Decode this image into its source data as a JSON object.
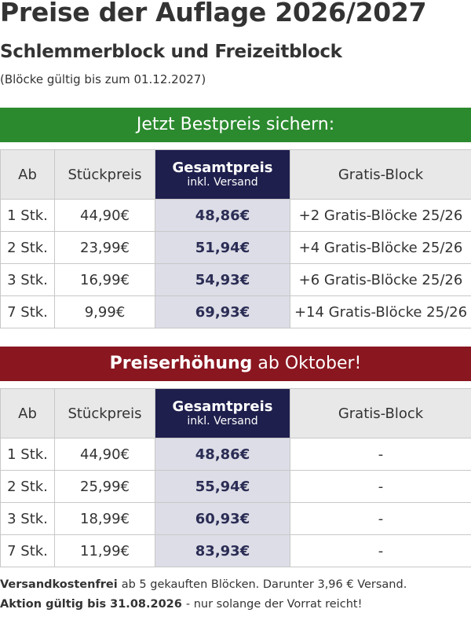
{
  "header": {
    "title": "Preise der Auflage 2026/2027",
    "subtitle": "Schlemmerblock und Freizeitblock",
    "note": "(Blöcke gültig bis zum 01.12.2027)"
  },
  "sections": [
    {
      "banner": {
        "bold": "",
        "text": "Jetzt Bestpreis sichern:"
      },
      "table": {
        "columns": [
          "Ab",
          "Stückpreis",
          {
            "label": "Gesamtpreis",
            "sublabel": "inkl. Versand"
          },
          "Gratis-Block"
        ],
        "rows": [
          [
            "1 Stk.",
            "44,90€",
            "48,86€",
            "+2 Gratis-Blöcke 25/26"
          ],
          [
            "2 Stk.",
            "23,99€",
            "51,94€",
            "+4 Gratis-Blöcke 25/26"
          ],
          [
            "3 Stk.",
            "16,99€",
            "54,93€",
            "+6 Gratis-Blöcke 25/26"
          ],
          [
            "7 Stk.",
            "9,99€",
            "69,93€",
            "+14 Gratis-Blöcke 25/26"
          ]
        ]
      }
    },
    {
      "banner": {
        "bold": "Preiserhöhung",
        "text": "ab Oktober!"
      },
      "table": {
        "columns": [
          "Ab",
          "Stückpreis",
          {
            "label": "Gesamtpreis",
            "sublabel": "inkl. Versand"
          },
          "Gratis-Block"
        ],
        "rows": [
          [
            "1 Stk.",
            "44,90€",
            "48,86€",
            "-"
          ],
          [
            "2 Stk.",
            "25,99€",
            "55,94€",
            "-"
          ],
          [
            "3 Stk.",
            "18,99€",
            "60,93€",
            "-"
          ],
          [
            "7 Stk.",
            "11,99€",
            "83,93€",
            "-"
          ]
        ]
      }
    }
  ],
  "footer": [
    {
      "bold": "Versandkostenfrei",
      "text": "ab 5 gekauften Blöcken. Darunter 3,96 € Versand."
    },
    {
      "bold": "Aktion gültig bis 31.08.2026",
      "text": "- nur solange der Vorrat reicht!"
    }
  ]
}
